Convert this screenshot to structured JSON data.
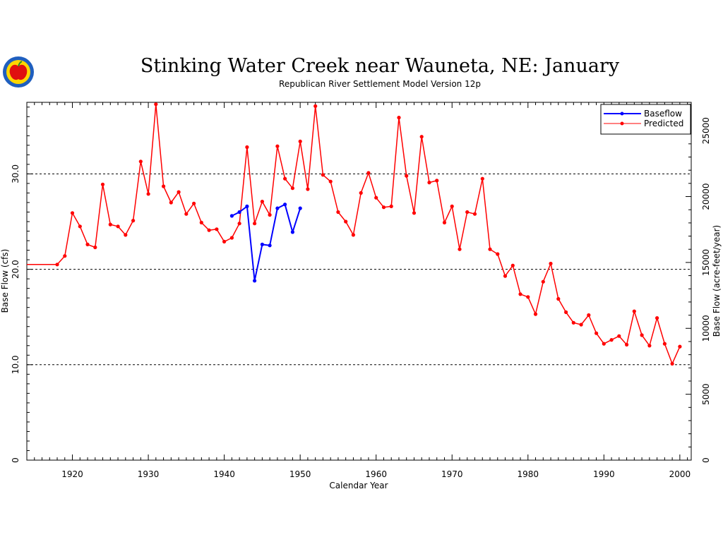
{
  "chart_data": {
    "type": "line",
    "title": "Stinking Water Creek near Wauneta, NE: January",
    "subtitle": "Republican River Settlement Model Version 12p",
    "xlabel": "Calendar Year",
    "ylabel": "Base Flow (cfs)",
    "y2label": "Base Flow (acre-feet/year)",
    "xlim": [
      1914,
      2001.5
    ],
    "ylim": [
      0,
      37.5
    ],
    "y2lim": [
      0,
      27150
    ],
    "x_ticks": [
      1920,
      1930,
      1940,
      1950,
      1960,
      1970,
      1980,
      1990,
      2000
    ],
    "y_ticks": [
      0,
      10,
      20,
      30
    ],
    "y_tick_labels": [
      "0",
      "10.0",
      "20.0",
      "30.0"
    ],
    "y2_ticks": [
      0,
      5000,
      10000,
      15000,
      20000,
      25000
    ],
    "y2_tick_labels": [
      "0",
      "5000",
      "10000",
      "15000",
      "20000",
      "25000"
    ],
    "grid_lines_y": [
      10,
      20,
      30
    ],
    "legend_position": "top-right",
    "series": [
      {
        "name": "Baseflow",
        "color": "#0000ff",
        "x": [
          1941,
          1942,
          1943,
          1944,
          1945,
          1946,
          1947,
          1948,
          1949,
          1950
        ],
        "values": [
          25.6,
          26.0,
          26.6,
          18.8,
          22.6,
          22.5,
          26.4,
          26.8,
          23.9,
          26.4
        ]
      },
      {
        "name": "Predicted",
        "color": "#ff0000",
        "x": [
          1914,
          1918,
          1919,
          1920,
          1921,
          1922,
          1923,
          1924,
          1925,
          1926,
          1927,
          1928,
          1929,
          1930,
          1931,
          1932,
          1933,
          1934,
          1935,
          1936,
          1937,
          1938,
          1939,
          1940,
          1941,
          1942,
          1943,
          1944,
          1945,
          1946,
          1947,
          1948,
          1949,
          1950,
          1951,
          1952,
          1953,
          1954,
          1955,
          1956,
          1957,
          1958,
          1959,
          1960,
          1961,
          1962,
          1963,
          1964,
          1965,
          1966,
          1967,
          1968,
          1969,
          1970,
          1971,
          1972,
          1973,
          1974,
          1975,
          1976,
          1977,
          1978,
          1979,
          1980,
          1981,
          1982,
          1983,
          1984,
          1985,
          1986,
          1987,
          1988,
          1989,
          1990,
          1991,
          1992,
          1993,
          1994,
          1995,
          1996,
          1997,
          1998,
          1999,
          2000
        ],
        "values": [
          20.5,
          20.5,
          21.4,
          25.9,
          24.5,
          22.6,
          22.3,
          28.9,
          24.7,
          24.5,
          23.6,
          25.1,
          31.3,
          27.9,
          37.3,
          28.7,
          27.0,
          28.1,
          25.8,
          26.9,
          24.9,
          24.1,
          24.2,
          22.9,
          23.3,
          24.8,
          32.8,
          24.8,
          27.1,
          25.7,
          32.9,
          29.5,
          28.5,
          33.4,
          28.4,
          37.1,
          29.9,
          29.2,
          26.0,
          25.0,
          23.6,
          28.0,
          30.1,
          27.5,
          26.5,
          26.6,
          35.9,
          29.8,
          25.9,
          33.9,
          29.1,
          29.3,
          24.9,
          26.6,
          22.1,
          26.0,
          25.8,
          29.5,
          22.1,
          21.6,
          19.3,
          20.4,
          17.4,
          17.1,
          15.3,
          18.7,
          20.6,
          16.9,
          15.5,
          14.4,
          14.2,
          15.2,
          13.3,
          12.2,
          12.6,
          13.0,
          12.1,
          15.6,
          13.1,
          12.0,
          14.9,
          12.2,
          10.1,
          11.9
        ]
      }
    ]
  }
}
